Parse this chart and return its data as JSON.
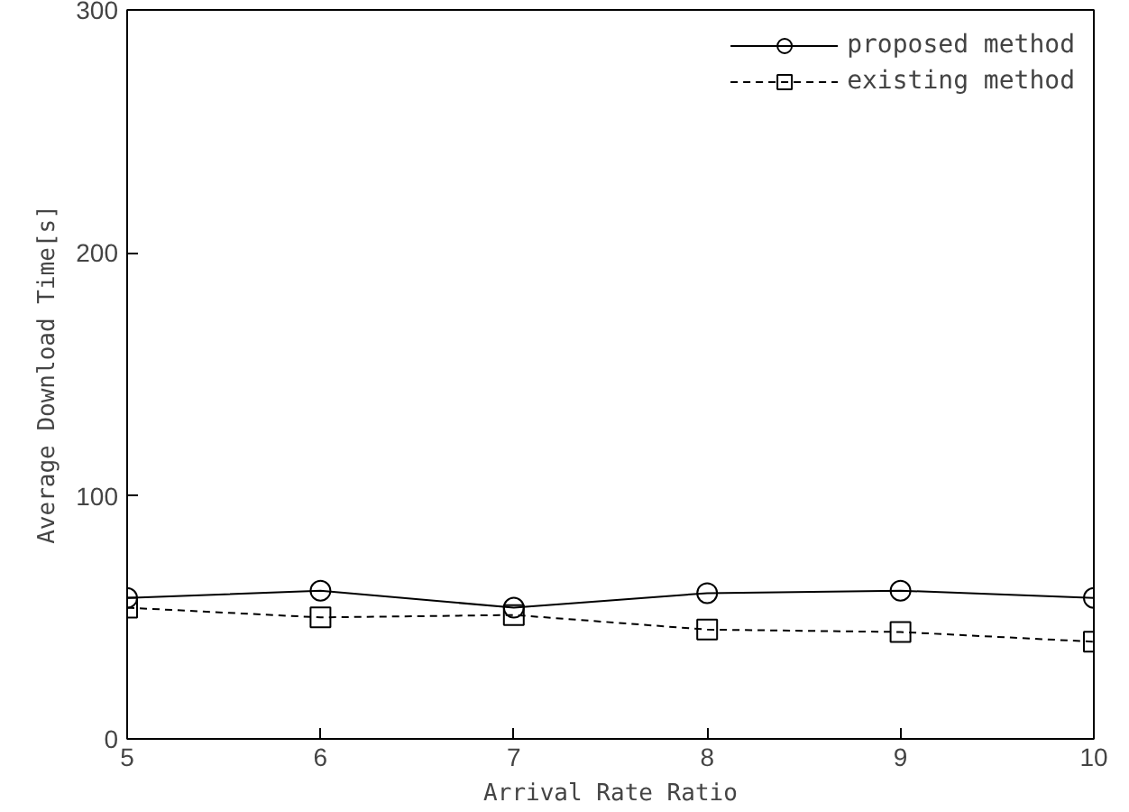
{
  "chart_data": {
    "type": "line",
    "xlabel": "Arrival Rate Ratio",
    "ylabel": "Average Download Time[s]",
    "x": [
      5,
      6,
      7,
      8,
      9,
      10
    ],
    "series": [
      {
        "name": "proposed method",
        "color": "#000000",
        "values": [
          58,
          61,
          54,
          60,
          61,
          58
        ],
        "marker": "circle",
        "line_style": "solid"
      },
      {
        "name": "existing method",
        "color": "#000000",
        "values": [
          54,
          50,
          51,
          45,
          44,
          40
        ],
        "marker": "square",
        "line_style": "dashed"
      }
    ],
    "xlim": [
      5,
      10
    ],
    "ylim": [
      0,
      300
    ],
    "xticks": [
      5,
      6,
      7,
      8,
      9,
      10
    ],
    "yticks": [
      0,
      100,
      200,
      300
    ],
    "grid": false,
    "legend": "top right"
  }
}
